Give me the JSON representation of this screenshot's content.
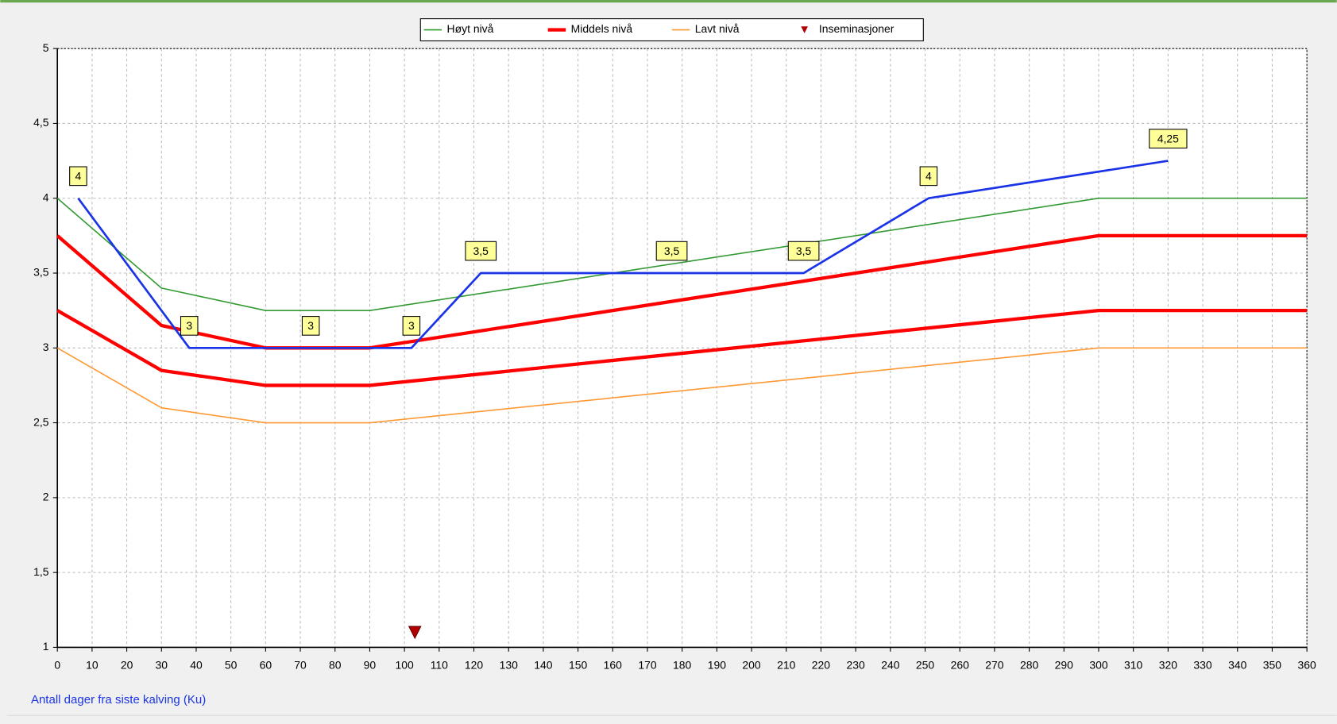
{
  "chart_data": {
    "type": "line",
    "x_label": "Antall dager fra siste kalving (Ku)",
    "xlim": [
      0,
      360
    ],
    "xticks": [
      0,
      10,
      20,
      30,
      40,
      50,
      60,
      70,
      80,
      90,
      100,
      110,
      120,
      130,
      140,
      150,
      160,
      170,
      180,
      190,
      200,
      210,
      220,
      230,
      240,
      250,
      260,
      270,
      280,
      290,
      300,
      310,
      320,
      330,
      340,
      350,
      360
    ],
    "ylim": [
      1,
      5
    ],
    "yticks": [
      1,
      {
        "value": 1.5,
        "label": "1,5"
      },
      2,
      {
        "value": 2.5,
        "label": "2,5"
      },
      3,
      {
        "value": 3.5,
        "label": "3,5"
      },
      4,
      {
        "value": 4.5,
        "label": "4,5"
      },
      5
    ],
    "grid": true,
    "legend": "top",
    "series": [
      {
        "name": "Høyt nivå",
        "color": "#339933",
        "line_width": 1.5,
        "x": [
          0,
          30,
          60,
          90,
          300,
          360
        ],
        "values": [
          4,
          3.4,
          3.25,
          3.25,
          4,
          4
        ]
      },
      {
        "name": "Middels nivå",
        "color": "#ff0000",
        "line_width": 4,
        "x": [
          0,
          30,
          60,
          90,
          300,
          360
        ],
        "values": [
          3.75,
          3.15,
          3,
          3,
          3.75,
          3.75
        ]
      },
      {
        "color": "#ff0000",
        "line_width": 4,
        "x": [
          0,
          30,
          60,
          90,
          300,
          360
        ],
        "values": [
          3.25,
          2.85,
          2.75,
          2.75,
          3.25,
          3.25
        ]
      },
      {
        "name": "Lavt nivå",
        "color": "#ff9933",
        "line_width": 1.5,
        "x": [
          0,
          30,
          60,
          90,
          300,
          360
        ],
        "values": [
          3,
          2.6,
          2.5,
          2.5,
          3,
          3
        ]
      },
      {
        "color": "#1a33e6",
        "line_width": 2.5,
        "x": [
          6,
          38,
          73,
          102,
          122,
          177,
          215,
          251,
          320
        ],
        "values": [
          4,
          3,
          3,
          3,
          3.5,
          3.5,
          3.5,
          4,
          4.25
        ],
        "value_labels": [
          "4",
          "3",
          "3",
          "3",
          "3,5",
          "3,5",
          "3,5",
          "4",
          "4,25"
        ]
      },
      {
        "name": "Inseminasjoner",
        "color": "#b00000",
        "marker": "triangle",
        "x": [
          103
        ],
        "values": [
          1.1
        ]
      }
    ]
  }
}
